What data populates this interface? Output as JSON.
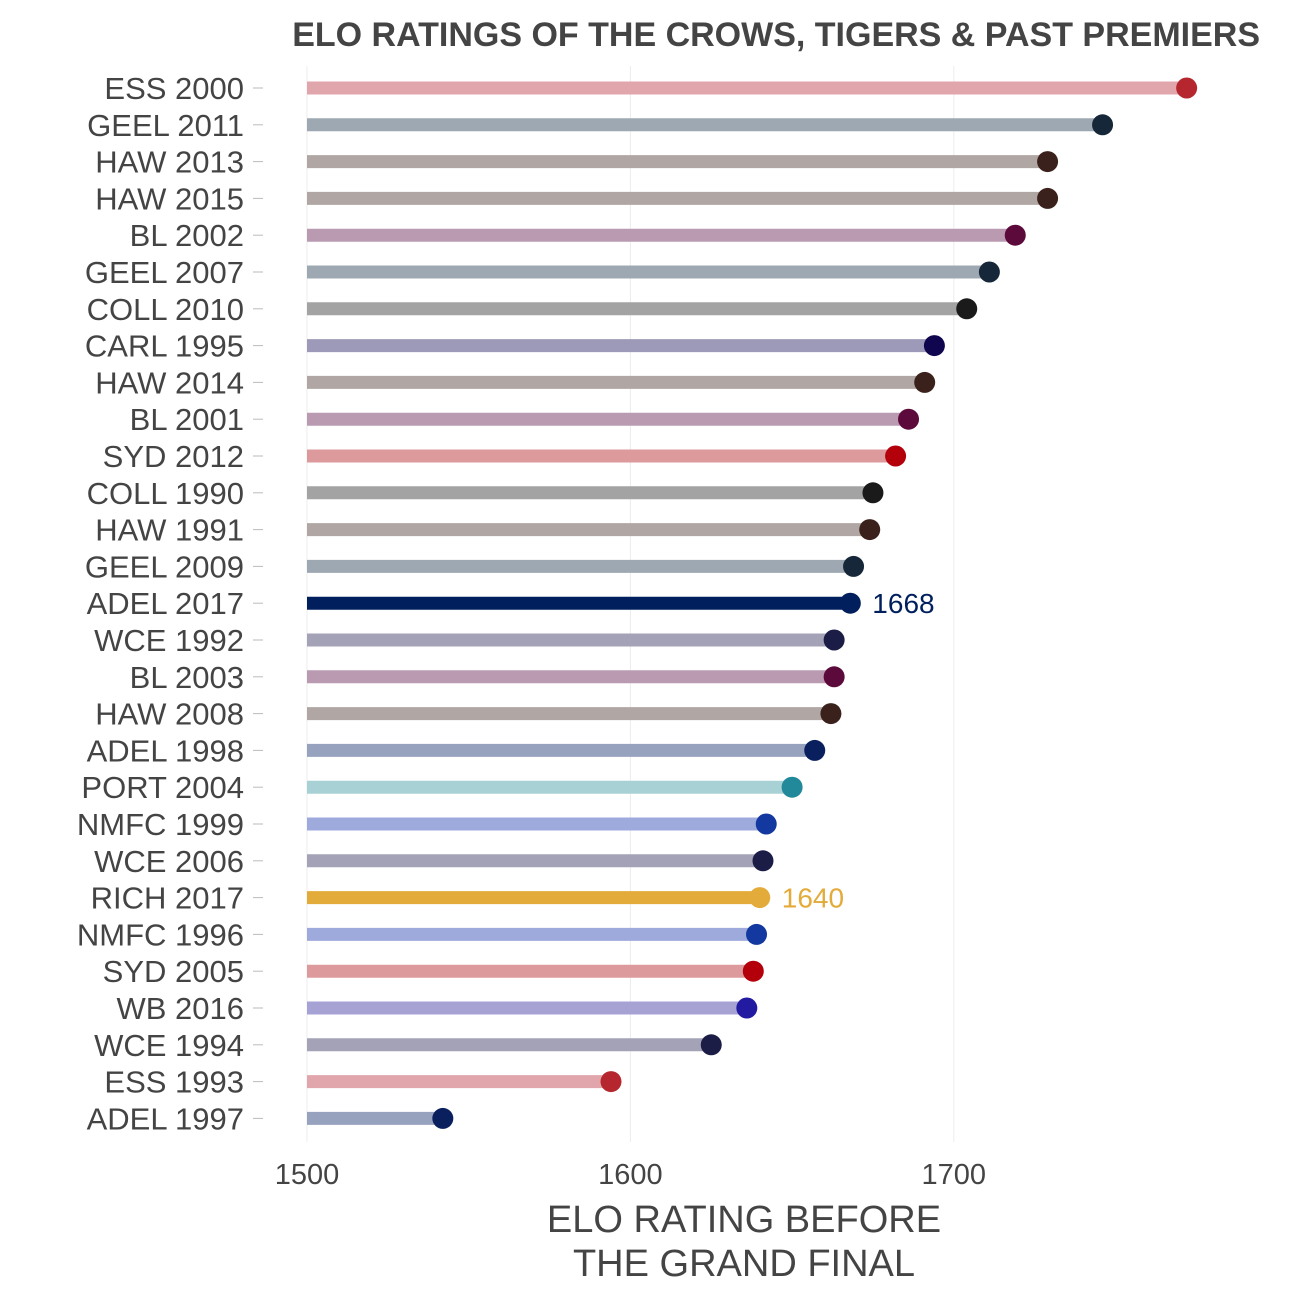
{
  "chart_data": {
    "type": "lollipop",
    "title": "ELO RATINGS OF THE CROWS, TIGERS & PAST PREMIERS",
    "xlabel": [
      "ELO RATING BEFORE",
      "THE GRAND FINAL"
    ],
    "ylabel": "",
    "xlim": [
      1500,
      1780
    ],
    "xticks": [
      "1500",
      "1600",
      "1700"
    ],
    "grid": "vertical",
    "legend": "none",
    "rows": [
      {
        "label": "ESS 2000",
        "value": 1772,
        "bar": "#e0a6ac",
        "dot": "#b5262e"
      },
      {
        "label": "GEEL 2011",
        "value": 1746,
        "bar": "#9ea8b2",
        "dot": "#152738"
      },
      {
        "label": "HAW 2013",
        "value": 1729,
        "bar": "#b0a6a3",
        "dot": "#3b211b"
      },
      {
        "label": "HAW 2015",
        "value": 1729,
        "bar": "#b0a6a3",
        "dot": "#3b211b"
      },
      {
        "label": "BL 2002",
        "value": 1719,
        "bar": "#b99ab1",
        "dot": "#5c0a3b"
      },
      {
        "label": "GEEL 2007",
        "value": 1711,
        "bar": "#9ea8b2",
        "dot": "#152738"
      },
      {
        "label": "COLL 2010",
        "value": 1704,
        "bar": "#a3a3a3",
        "dot": "#1a1a1a"
      },
      {
        "label": "CARL 1995",
        "value": 1694,
        "bar": "#9d99b8",
        "dot": "#10064f"
      },
      {
        "label": "HAW 2014",
        "value": 1691,
        "bar": "#b0a6a3",
        "dot": "#3b211b"
      },
      {
        "label": "BL 2001",
        "value": 1686,
        "bar": "#b99ab1",
        "dot": "#5c0a3b"
      },
      {
        "label": "SYD 2012",
        "value": 1682,
        "bar": "#dd9a9c",
        "dot": "#b3000b"
      },
      {
        "label": "COLL 1990",
        "value": 1675,
        "bar": "#a3a3a3",
        "dot": "#1a1a1a"
      },
      {
        "label": "HAW 1991",
        "value": 1674,
        "bar": "#b0a6a3",
        "dot": "#3b211b"
      },
      {
        "label": "GEEL 2009",
        "value": 1669,
        "bar": "#9ea8b2",
        "dot": "#152738"
      },
      {
        "label": "ADEL 2017",
        "value": 1668,
        "bar": "#001f5c",
        "dot": "#001f5c",
        "highlight": true,
        "text": "1668",
        "textColor": "#001f5c"
      },
      {
        "label": "WCE 1992",
        "value": 1663,
        "bar": "#a3a2b6",
        "dot": "#1c1d47"
      },
      {
        "label": "BL 2003",
        "value": 1663,
        "bar": "#b99ab1",
        "dot": "#5c0a3b"
      },
      {
        "label": "HAW 2008",
        "value": 1662,
        "bar": "#b0a6a3",
        "dot": "#3b211b"
      },
      {
        "label": "ADEL 1998",
        "value": 1657,
        "bar": "#97a2be",
        "dot": "#0a1f5e"
      },
      {
        "label": "PORT 2004",
        "value": 1650,
        "bar": "#a7d1d4",
        "dot": "#21899a"
      },
      {
        "label": "NMFC 1999",
        "value": 1642,
        "bar": "#9eaadb",
        "dot": "#13389f"
      },
      {
        "label": "WCE 2006",
        "value": 1641,
        "bar": "#a3a2b6",
        "dot": "#1c1d47"
      },
      {
        "label": "RICH 2017",
        "value": 1640,
        "bar": "#e3ab39",
        "dot": "#e3ab39",
        "highlight": true,
        "text": "1640",
        "textColor": "#e3ab39"
      },
      {
        "label": "NMFC 1996",
        "value": 1639,
        "bar": "#9eaadb",
        "dot": "#13389f"
      },
      {
        "label": "SYD 2005",
        "value": 1638,
        "bar": "#dd9a9c",
        "dot": "#b3000b"
      },
      {
        "label": "WB 2016",
        "value": 1636,
        "bar": "#a6a2d4",
        "dot": "#221aa0"
      },
      {
        "label": "WCE 1994",
        "value": 1625,
        "bar": "#a3a2b6",
        "dot": "#1c1d47"
      },
      {
        "label": "ESS 1993",
        "value": 1594,
        "bar": "#e0a6ac",
        "dot": "#b5262e"
      },
      {
        "label": "ADEL 1997",
        "value": 1542,
        "bar": "#97a2be",
        "dot": "#0a1f5e"
      }
    ]
  }
}
